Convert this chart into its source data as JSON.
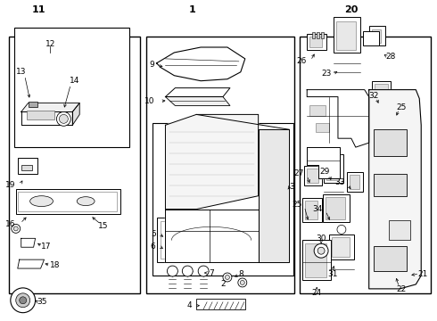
{
  "bg": "#ffffff",
  "lc": "#000000",
  "figsize": [
    4.9,
    3.6
  ],
  "dpi": 100
}
